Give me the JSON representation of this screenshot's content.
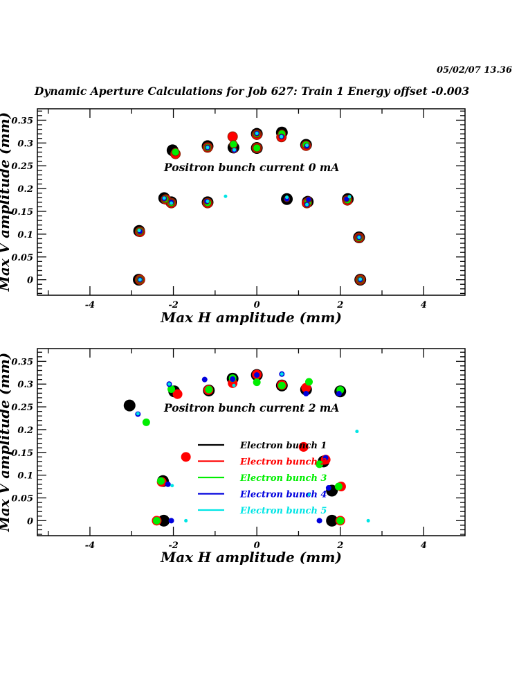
{
  "header": {
    "timestamp": "05/02/07   13.36",
    "title": "Dynamic Aperture Calculations for Job 627:  Train 1   Energy offset  -0.003"
  },
  "colors": {
    "bunch1": "#000000",
    "bunch2": "#ff0000",
    "bunch3": "#00ee00",
    "bunch4": "#0000dd",
    "bunch5": "#00e5e5",
    "ring_edge": "#8b2000"
  },
  "chart_data": [
    {
      "type": "scatter",
      "title": "",
      "annotation": "Positron bunch current  0 mA",
      "xlabel": "Max H amplitude (mm)",
      "ylabel": "Max V amplitude (mm)",
      "xlim": [
        -5.26,
        4.99
      ],
      "ylim": [
        -0.034,
        0.375
      ],
      "xticks": [
        -4,
        -2,
        0,
        2,
        4
      ],
      "xtick_labels": [
        "-4",
        "-2",
        "0",
        "2",
        "4"
      ],
      "yticks": [
        0,
        0.05,
        0.1,
        0.15,
        0.2,
        0.25,
        0.3,
        0.35
      ],
      "ytick_labels": [
        "0",
        "0.05",
        "0.1",
        "0.15",
        "0.2",
        "0.25",
        "0.3",
        "0.35"
      ],
      "grid": false,
      "legend": null,
      "series": [
        {
          "name": "Electron bunch 1",
          "color": "#000000",
          "x": [
            -2.02,
            -1.18,
            -0.56,
            0.0,
            0.0,
            0.6,
            1.18,
            -2.22,
            -2.05,
            -1.18,
            0.72,
            1.22,
            2.18,
            -2.82,
            2.45,
            -2.83,
            2.48
          ],
          "y": [
            0.284,
            0.293,
            0.29,
            0.32,
            0.289,
            0.323,
            0.296,
            0.179,
            0.17,
            0.17,
            0.177,
            0.171,
            0.177,
            0.107,
            0.093,
            0.0,
            0.0
          ]
        },
        {
          "name": "Electron bunch 2",
          "color": "#ff0000",
          "x": [
            -1.95,
            -1.18,
            -0.58,
            0.0,
            0.0,
            0.59,
            1.18,
            -2.18,
            -2.05,
            -1.18,
            1.2,
            2.17,
            -2.8,
            2.45,
            -2.8,
            2.48
          ],
          "y": [
            0.276,
            0.29,
            0.314,
            0.318,
            0.289,
            0.313,
            0.294,
            0.176,
            0.168,
            0.168,
            0.168,
            0.174,
            0.105,
            0.092,
            0.0,
            0.0
          ]
        },
        {
          "name": "Electron bunch 3",
          "color": "#00ee00",
          "x": [
            -1.95,
            -1.18,
            -0.56,
            0.0,
            0.0,
            0.6,
            1.18,
            -2.2,
            -2.05,
            -1.18,
            1.22,
            2.17,
            -2.8,
            2.45,
            -2.8,
            2.48
          ],
          "y": [
            0.28,
            0.29,
            0.297,
            0.32,
            0.289,
            0.32,
            0.296,
            0.177,
            0.169,
            0.169,
            0.17,
            0.175,
            0.106,
            0.092,
            0.0,
            0.0
          ]
        },
        {
          "name": "Electron bunch 4",
          "color": "#0000dd",
          "x": [
            -1.18,
            -0.54,
            0.0,
            0.59,
            1.2,
            -2.22,
            -2.05,
            -1.2,
            0.72,
            1.24,
            1.2,
            2.15,
            -2.8,
            2.45,
            -2.8,
            2.48
          ],
          "y": [
            0.29,
            0.284,
            0.321,
            0.314,
            0.293,
            0.178,
            0.17,
            0.172,
            0.177,
            0.176,
            0.165,
            0.177,
            0.106,
            0.093,
            0.0,
            0.0
          ]
        },
        {
          "name": "Electron bunch 5",
          "color": "#00e5e5",
          "x": [
            -1.18,
            -0.54,
            0.0,
            0.59,
            1.2,
            -2.22,
            -2.05,
            -1.18,
            0.72,
            1.2,
            2.22,
            -2.82,
            2.45,
            -2.8,
            2.48,
            -0.75
          ],
          "y": [
            0.29,
            0.285,
            0.321,
            0.314,
            0.295,
            0.179,
            0.168,
            0.172,
            0.181,
            0.165,
            0.182,
            0.108,
            0.093,
            0.0,
            0.001,
            0.183
          ]
        }
      ]
    },
    {
      "type": "scatter",
      "title": "",
      "annotation": "Positron bunch current  2 mA",
      "xlabel": "Max H amplitude (mm)",
      "ylabel": "Max V amplitude (mm)",
      "xlim": [
        -5.26,
        4.99
      ],
      "ylim": [
        -0.033,
        0.378
      ],
      "xticks": [
        -4,
        -2,
        0,
        2,
        4
      ],
      "xtick_labels": [
        "-4",
        "-2",
        "0",
        "2",
        "4"
      ],
      "yticks": [
        0,
        0.05,
        0.1,
        0.15,
        0.2,
        0.25,
        0.3,
        0.35
      ],
      "ytick_labels": [
        "0",
        "0.05",
        "0.1",
        "0.15",
        "0.2",
        "0.25",
        "0.3",
        "0.35"
      ],
      "grid": false,
      "legend": {
        "position": "center",
        "entries": [
          "Electron bunch 1",
          "Electron bunch 2",
          "Electron bunch 3",
          "Electron bunch 4",
          "Electron bunch 5"
        ]
      },
      "series": [
        {
          "name": "Electron bunch 1",
          "color": "#000000",
          "x": [
            -3.05,
            -1.98,
            -1.15,
            -0.58,
            0.0,
            0.6,
            1.18,
            2.0,
            -2.25,
            -2.23,
            1.6,
            1.8,
            1.8
          ],
          "y": [
            0.253,
            0.284,
            0.286,
            0.312,
            0.32,
            0.297,
            0.288,
            0.284,
            0.087,
            0.0,
            0.13,
            0.066,
            0.0
          ]
        },
        {
          "name": "Electron bunch 2",
          "color": "#ff0000",
          "x": [
            -1.9,
            -1.16,
            -0.58,
            0.0,
            0.6,
            1.18,
            -1.7,
            -2.28,
            -2.4,
            1.12,
            1.65,
            2.02,
            2.0
          ],
          "y": [
            0.278,
            0.287,
            0.302,
            0.321,
            0.298,
            0.292,
            0.14,
            0.085,
            0.0,
            0.162,
            0.134,
            0.075,
            0.0
          ]
        },
        {
          "name": "Electron bunch 3",
          "color": "#00ee00",
          "x": [
            -2.65,
            -2.05,
            -1.15,
            -0.58,
            0.0,
            0.6,
            1.25,
            2.0,
            -2.3,
            -2.4,
            1.5,
            1.96,
            2.0
          ],
          "y": [
            0.216,
            0.289,
            0.288,
            0.313,
            0.304,
            0.297,
            0.305,
            0.287,
            0.087,
            0.0,
            0.124,
            0.075,
            0.0
          ]
        },
        {
          "name": "Electron bunch 4",
          "color": "#0000dd",
          "x": [
            -2.85,
            -2.1,
            -1.25,
            -0.58,
            0.0,
            0.6,
            1.18,
            1.97,
            -2.13,
            -2.05,
            1.65,
            1.72,
            1.5
          ],
          "y": [
            0.234,
            0.3,
            0.31,
            0.311,
            0.32,
            0.322,
            0.279,
            0.279,
            0.08,
            0.0,
            0.138,
            0.072,
            0.0
          ]
        },
        {
          "name": "Electron bunch 5",
          "color": "#00e5e5",
          "x": [
            -2.85,
            -2.1,
            -0.55,
            0.6,
            2.4,
            -2.03,
            -1.7,
            1.25,
            2.67
          ],
          "y": [
            0.235,
            0.3,
            0.297,
            0.322,
            0.196,
            0.077,
            0.0,
            0.057,
            0.0
          ]
        }
      ]
    }
  ]
}
